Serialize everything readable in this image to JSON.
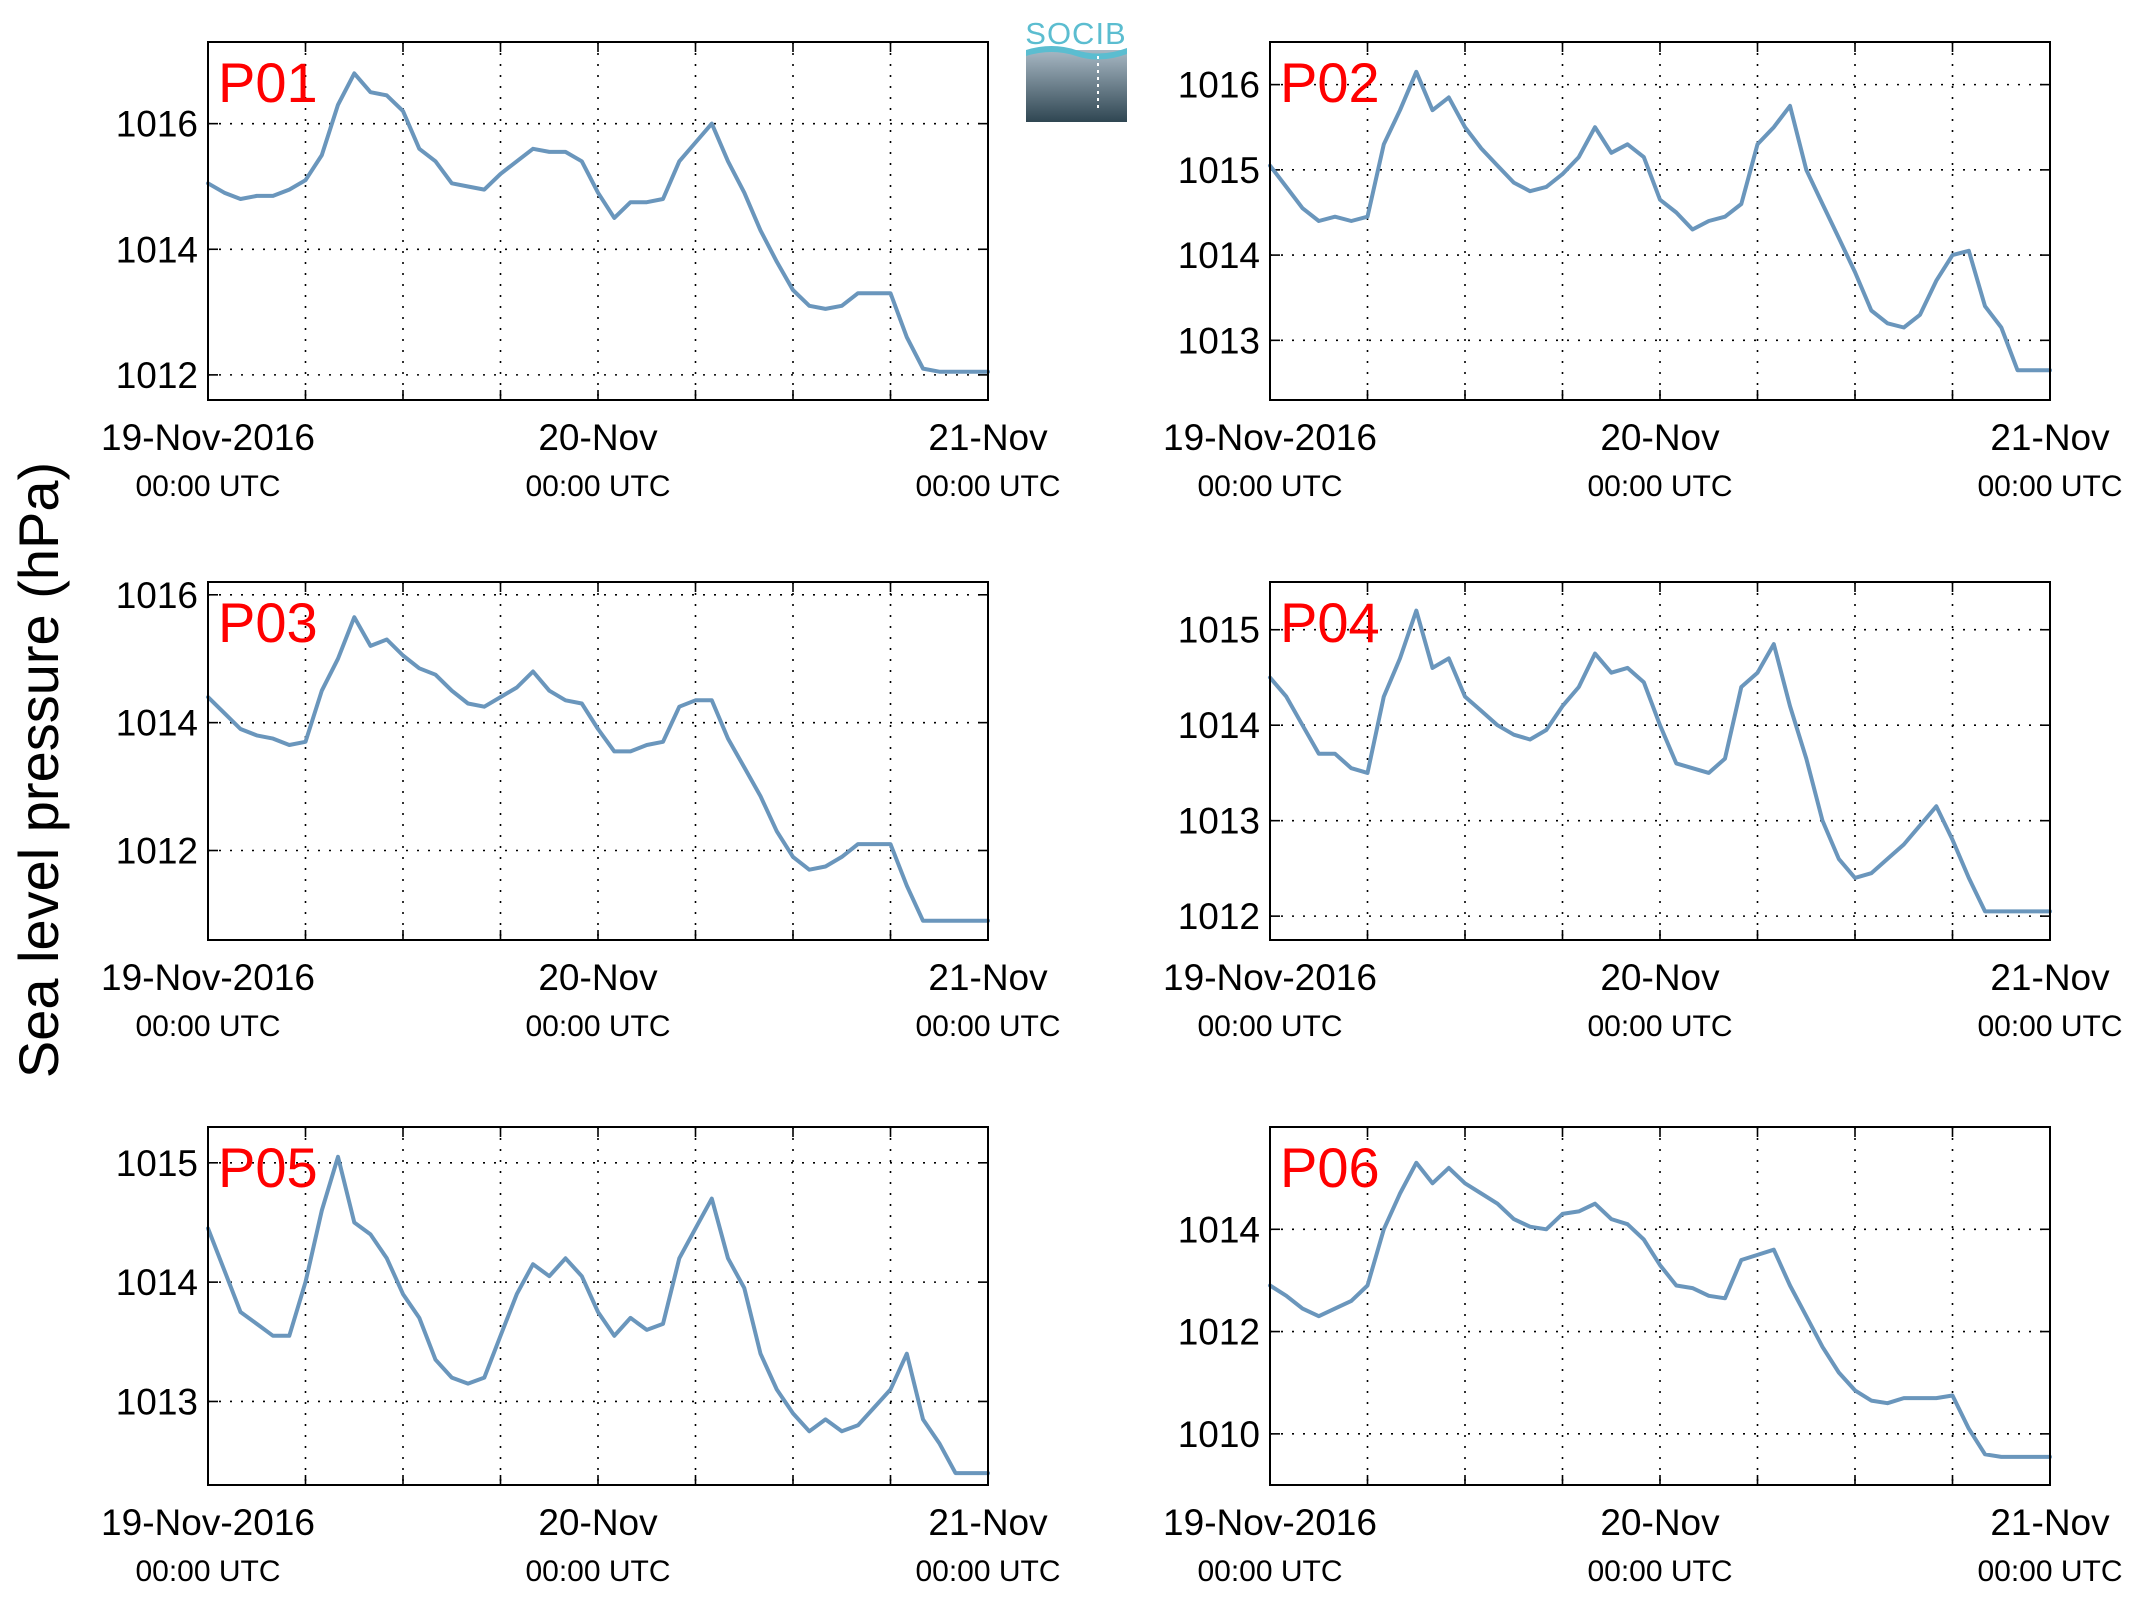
{
  "figure": {
    "ylabel": "Sea level pressure (hPa)",
    "logo_text": "SOCIB",
    "line_color": "#6a96bc",
    "label_color": "#ff0000"
  },
  "chart_data": [
    {
      "type": "line",
      "name": "P01",
      "x_ticks": [
        {
          "main": "19-Nov-2016",
          "sub": "00:00 UTC"
        },
        {
          "main": "20-Nov",
          "sub": "00:00 UTC"
        },
        {
          "main": "21-Nov",
          "sub": "00:00 UTC"
        }
      ],
      "x_range_hours": [
        0,
        48
      ],
      "ylim": [
        1011.6,
        1017.3
      ],
      "yticks": [
        1012,
        1014,
        1016
      ],
      "grid": true,
      "x_hours": [
        0,
        1,
        2,
        3,
        4,
        5,
        6,
        7,
        8,
        9,
        10,
        11,
        12,
        13,
        14,
        15,
        16,
        17,
        18,
        19,
        20,
        21,
        22,
        23,
        24,
        25,
        26,
        27,
        28,
        29,
        30,
        31,
        32,
        33,
        34,
        35,
        36,
        37,
        38,
        39,
        40,
        41,
        42,
        43,
        44,
        45,
        46,
        47,
        48
      ],
      "values": [
        1015.05,
        1014.9,
        1014.8,
        1014.85,
        1014.85,
        1014.95,
        1015.1,
        1015.5,
        1016.3,
        1016.8,
        1016.5,
        1016.45,
        1016.2,
        1015.6,
        1015.4,
        1015.05,
        1015.0,
        1014.95,
        1015.2,
        1015.4,
        1015.6,
        1015.55,
        1015.55,
        1015.4,
        1014.9,
        1014.5,
        1014.75,
        1014.75,
        1014.8,
        1015.4,
        1015.7,
        1016.0,
        1015.4,
        1014.9,
        1014.3,
        1013.8,
        1013.35,
        1013.1,
        1013.05,
        1013.1,
        1013.3,
        1013.3,
        1013.3,
        1012.6,
        1012.1,
        1012.05,
        1012.05,
        1012.05,
        1012.05
      ]
    },
    {
      "type": "line",
      "name": "P02",
      "x_ticks": [
        {
          "main": "19-Nov-2016",
          "sub": "00:00 UTC"
        },
        {
          "main": "20-Nov",
          "sub": "00:00 UTC"
        },
        {
          "main": "21-Nov",
          "sub": "00:00 UTC"
        }
      ],
      "x_range_hours": [
        0,
        48
      ],
      "ylim": [
        1012.3,
        1016.5
      ],
      "yticks": [
        1013,
        1014,
        1015,
        1016
      ],
      "grid": true,
      "x_hours": [
        0,
        1,
        2,
        3,
        4,
        5,
        6,
        7,
        8,
        9,
        10,
        11,
        12,
        13,
        14,
        15,
        16,
        17,
        18,
        19,
        20,
        21,
        22,
        23,
        24,
        25,
        26,
        27,
        28,
        29,
        30,
        31,
        32,
        33,
        34,
        35,
        36,
        37,
        38,
        39,
        40,
        41,
        42,
        43,
        44,
        45,
        46,
        47,
        48
      ],
      "values": [
        1015.05,
        1014.8,
        1014.55,
        1014.4,
        1014.45,
        1014.4,
        1014.45,
        1015.3,
        1015.7,
        1016.15,
        1015.7,
        1015.85,
        1015.5,
        1015.25,
        1015.05,
        1014.85,
        1014.75,
        1014.8,
        1014.95,
        1015.15,
        1015.5,
        1015.2,
        1015.3,
        1015.15,
        1014.65,
        1014.5,
        1014.3,
        1014.4,
        1014.45,
        1014.6,
        1015.3,
        1015.5,
        1015.75,
        1015.0,
        1014.6,
        1014.2,
        1013.8,
        1013.35,
        1013.2,
        1013.15,
        1013.3,
        1013.7,
        1014.0,
        1014.05,
        1013.4,
        1013.15,
        1012.65,
        1012.65,
        1012.65
      ]
    },
    {
      "type": "line",
      "name": "P03",
      "x_ticks": [
        {
          "main": "19-Nov-2016",
          "sub": "00:00 UTC"
        },
        {
          "main": "20-Nov",
          "sub": "00:00 UTC"
        },
        {
          "main": "21-Nov",
          "sub": "00:00 UTC"
        }
      ],
      "x_range_hours": [
        0,
        48
      ],
      "ylim": [
        1010.6,
        1016.2
      ],
      "yticks": [
        1012,
        1014,
        1016
      ],
      "grid": true,
      "x_hours": [
        0,
        1,
        2,
        3,
        4,
        5,
        6,
        7,
        8,
        9,
        10,
        11,
        12,
        13,
        14,
        15,
        16,
        17,
        18,
        19,
        20,
        21,
        22,
        23,
        24,
        25,
        26,
        27,
        28,
        29,
        30,
        31,
        32,
        33,
        34,
        35,
        36,
        37,
        38,
        39,
        40,
        41,
        42,
        43,
        44,
        45,
        46,
        47,
        48
      ],
      "values": [
        1014.4,
        1014.15,
        1013.9,
        1013.8,
        1013.75,
        1013.65,
        1013.7,
        1014.5,
        1015.0,
        1015.65,
        1015.2,
        1015.3,
        1015.05,
        1014.85,
        1014.75,
        1014.5,
        1014.3,
        1014.25,
        1014.4,
        1014.55,
        1014.8,
        1014.5,
        1014.35,
        1014.3,
        1013.9,
        1013.55,
        1013.55,
        1013.65,
        1013.7,
        1014.25,
        1014.35,
        1014.35,
        1013.75,
        1013.3,
        1012.85,
        1012.3,
        1011.9,
        1011.7,
        1011.75,
        1011.9,
        1012.1,
        1012.1,
        1012.1,
        1011.45,
        1010.9,
        1010.9,
        1010.9,
        1010.9,
        1010.9
      ]
    },
    {
      "type": "line",
      "name": "P04",
      "x_ticks": [
        {
          "main": "19-Nov-2016",
          "sub": "00:00 UTC"
        },
        {
          "main": "20-Nov",
          "sub": "00:00 UTC"
        },
        {
          "main": "21-Nov",
          "sub": "00:00 UTC"
        }
      ],
      "x_range_hours": [
        0,
        48
      ],
      "ylim": [
        1011.75,
        1015.5
      ],
      "yticks": [
        1012,
        1013,
        1014,
        1015
      ],
      "grid": true,
      "x_hours": [
        0,
        1,
        2,
        3,
        4,
        5,
        6,
        7,
        8,
        9,
        10,
        11,
        12,
        13,
        14,
        15,
        16,
        17,
        18,
        19,
        20,
        21,
        22,
        23,
        24,
        25,
        26,
        27,
        28,
        29,
        30,
        31,
        32,
        33,
        34,
        35,
        36,
        37,
        38,
        39,
        40,
        41,
        42,
        43,
        44,
        45,
        46,
        47,
        48
      ],
      "values": [
        1014.5,
        1014.3,
        1014.0,
        1013.7,
        1013.7,
        1013.55,
        1013.5,
        1014.3,
        1014.7,
        1015.2,
        1014.6,
        1014.7,
        1014.3,
        1014.15,
        1014.0,
        1013.9,
        1013.85,
        1013.95,
        1014.2,
        1014.4,
        1014.75,
        1014.55,
        1014.6,
        1014.45,
        1014.0,
        1013.6,
        1013.55,
        1013.5,
        1013.65,
        1014.4,
        1014.55,
        1014.85,
        1014.2,
        1013.65,
        1013.0,
        1012.6,
        1012.4,
        1012.45,
        1012.6,
        1012.75,
        1012.95,
        1013.15,
        1012.8,
        1012.4,
        1012.05,
        1012.05,
        1012.05,
        1012.05,
        1012.05
      ]
    },
    {
      "type": "line",
      "name": "P05",
      "x_ticks": [
        {
          "main": "19-Nov-2016",
          "sub": "00:00 UTC"
        },
        {
          "main": "20-Nov",
          "sub": "00:00 UTC"
        },
        {
          "main": "21-Nov",
          "sub": "00:00 UTC"
        }
      ],
      "x_range_hours": [
        0,
        48
      ],
      "ylim": [
        1012.3,
        1015.3
      ],
      "yticks": [
        1013,
        1014,
        1015
      ],
      "grid": true,
      "x_hours": [
        0,
        1,
        2,
        3,
        4,
        5,
        6,
        7,
        8,
        9,
        10,
        11,
        12,
        13,
        14,
        15,
        16,
        17,
        18,
        19,
        20,
        21,
        22,
        23,
        24,
        25,
        26,
        27,
        28,
        29,
        30,
        31,
        32,
        33,
        34,
        35,
        36,
        37,
        38,
        39,
        40,
        41,
        42,
        43,
        44,
        45,
        46,
        47,
        48
      ],
      "values": [
        1014.45,
        1014.1,
        1013.75,
        1013.65,
        1013.55,
        1013.55,
        1014.0,
        1014.6,
        1015.05,
        1014.5,
        1014.4,
        1014.2,
        1013.9,
        1013.7,
        1013.35,
        1013.2,
        1013.15,
        1013.2,
        1013.55,
        1013.9,
        1014.15,
        1014.05,
        1014.2,
        1014.05,
        1013.75,
        1013.55,
        1013.7,
        1013.6,
        1013.65,
        1014.2,
        1014.45,
        1014.7,
        1014.2,
        1013.95,
        1013.4,
        1013.1,
        1012.9,
        1012.75,
        1012.85,
        1012.75,
        1012.8,
        1012.95,
        1013.1,
        1013.4,
        1012.85,
        1012.65,
        1012.4,
        1012.4,
        1012.4
      ]
    },
    {
      "type": "line",
      "name": "P06",
      "x_ticks": [
        {
          "main": "19-Nov-2016",
          "sub": "00:00 UTC"
        },
        {
          "main": "20-Nov",
          "sub": "00:00 UTC"
        },
        {
          "main": "21-Nov",
          "sub": "00:00 UTC"
        }
      ],
      "x_range_hours": [
        0,
        48
      ],
      "ylim": [
        1009.0,
        1016.0
      ],
      "yticks": [
        1010,
        1012,
        1014
      ],
      "grid": true,
      "x_hours": [
        0,
        1,
        2,
        3,
        4,
        5,
        6,
        7,
        8,
        9,
        10,
        11,
        12,
        13,
        14,
        15,
        16,
        17,
        18,
        19,
        20,
        21,
        22,
        23,
        24,
        25,
        26,
        27,
        28,
        29,
        30,
        31,
        32,
        33,
        34,
        35,
        36,
        37,
        38,
        39,
        40,
        41,
        42,
        43,
        44,
        45,
        46,
        47,
        48
      ],
      "values": [
        1012.9,
        1012.7,
        1012.45,
        1012.3,
        1012.45,
        1012.6,
        1012.9,
        1014.0,
        1014.7,
        1015.3,
        1014.9,
        1015.2,
        1014.9,
        1014.7,
        1014.5,
        1014.2,
        1014.05,
        1014.0,
        1014.3,
        1014.35,
        1014.5,
        1014.2,
        1014.1,
        1013.8,
        1013.3,
        1012.9,
        1012.85,
        1012.7,
        1012.65,
        1013.4,
        1013.5,
        1013.6,
        1012.9,
        1012.3,
        1011.7,
        1011.2,
        1010.85,
        1010.65,
        1010.6,
        1010.7,
        1010.7,
        1010.7,
        1010.75,
        1010.1,
        1009.6,
        1009.55,
        1009.55,
        1009.55,
        1009.55
      ]
    }
  ]
}
